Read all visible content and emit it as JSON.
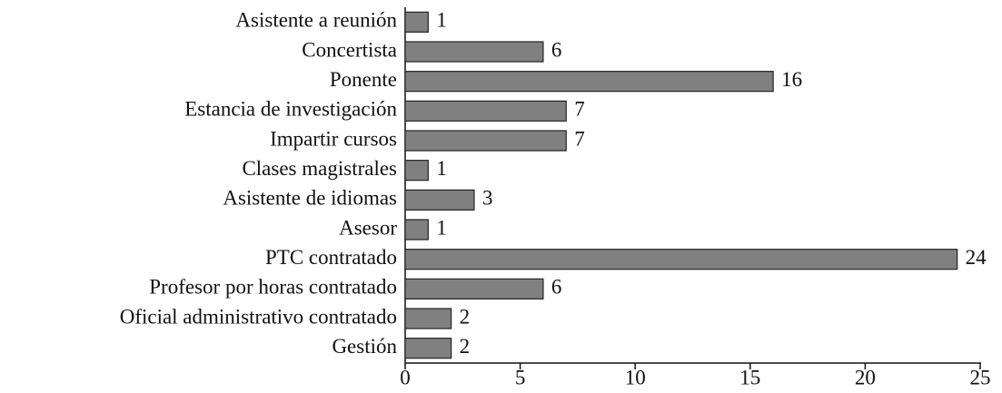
{
  "chart_data": {
    "type": "bar",
    "orientation": "horizontal",
    "categories": [
      "Asistente a reunión",
      "Concertista",
      "Ponente",
      "Estancia de investigación",
      "Impartir cursos",
      "Clases magistrales",
      "Asistente de idiomas",
      "Asesor",
      "PTC contratado",
      "Profesor por horas contratado",
      "Oficial administrativo contratado",
      "Gestión"
    ],
    "values": [
      1,
      6,
      16,
      7,
      7,
      1,
      3,
      1,
      24,
      6,
      2,
      2
    ],
    "color": "#808080",
    "xlim": [
      0,
      25
    ],
    "xticks": [
      0,
      5,
      10,
      15,
      20,
      25
    ],
    "grid": false
  }
}
